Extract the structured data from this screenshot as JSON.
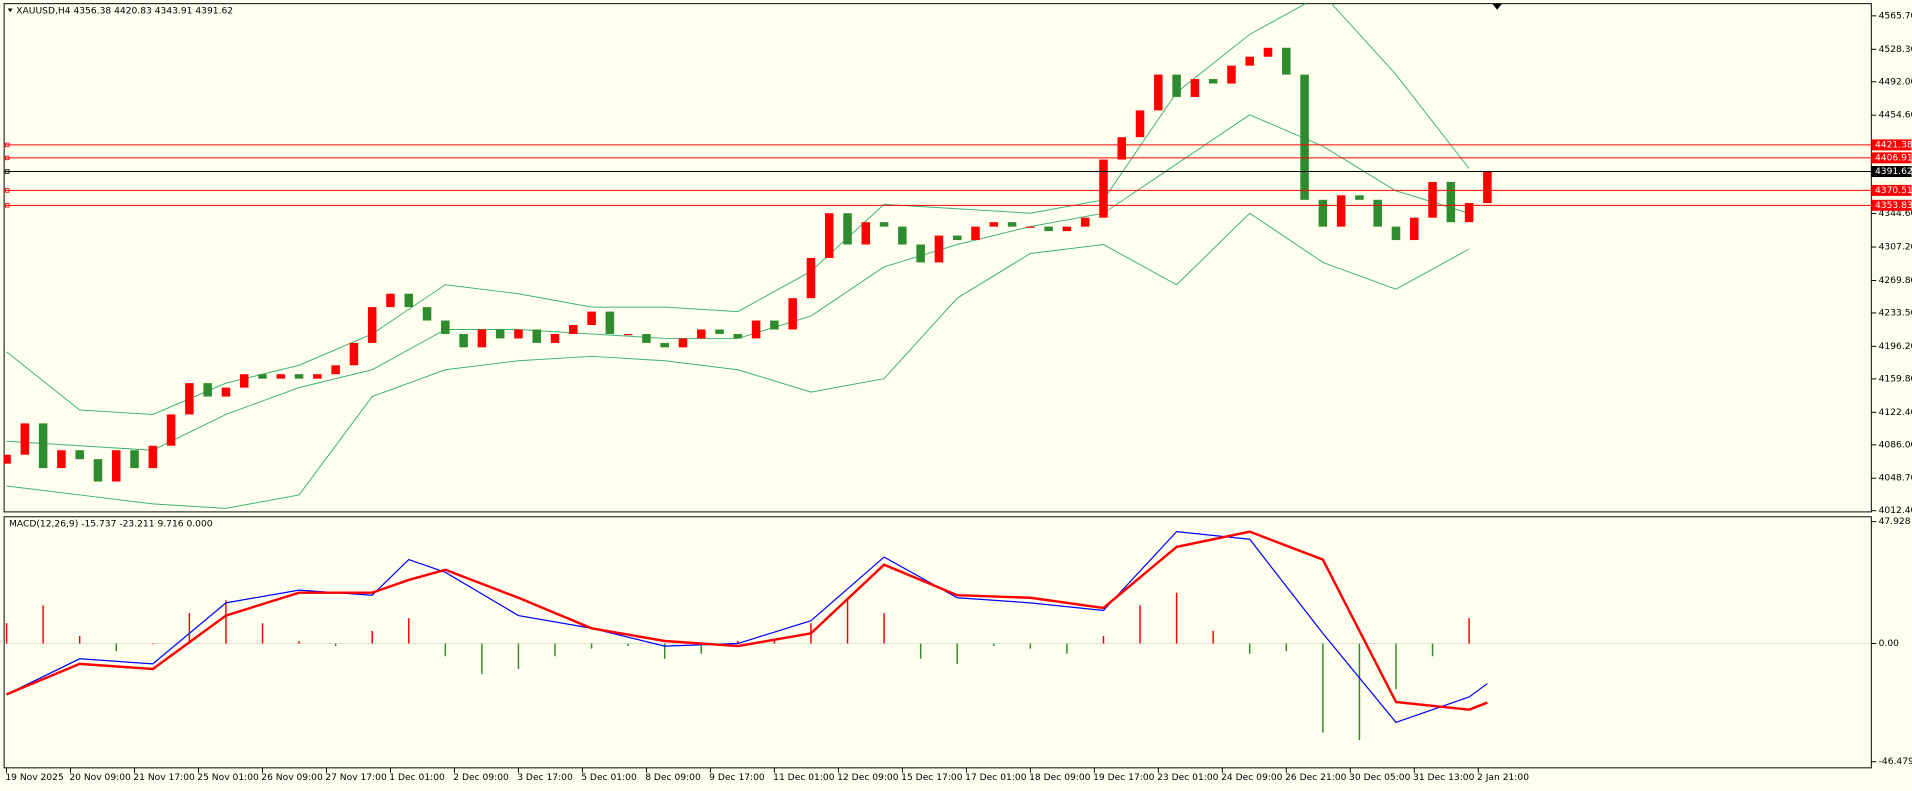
{
  "chart_data": {
    "type": "candlestick",
    "title": "XAUUSD,H4  4356.38 4420.83 4343.91 4391.62",
    "x_labels": [
      "19 Nov 2025",
      "20 Nov 09:00",
      "21 Nov 17:00",
      "25 Nov 01:00",
      "26 Nov 09:00",
      "27 Nov 17:00",
      "1 Dec 01:00",
      "2 Dec 09:00",
      "3 Dec 17:00",
      "5 Dec 01:00",
      "8 Dec 09:00",
      "9 Dec 17:00",
      "11 Dec 01:00",
      "12 Dec 09:00",
      "15 Dec 17:00",
      "17 Dec 01:00",
      "18 Dec 09:00",
      "19 Dec 17:00",
      "23 Dec 01:00",
      "24 Dec 09:00",
      "26 Dec 21:00",
      "30 Dec 05:00",
      "31 Dec 13:00",
      "2 Jan 21:00"
    ],
    "open": [
      4065,
      4075,
      4110,
      4060,
      4080,
      4070,
      4045,
      4080,
      4060,
      4085,
      4120,
      4155,
      4140,
      4150,
      4165,
      4160,
      4165,
      4160,
      4165,
      4175,
      4200,
      4240,
      4255,
      4240,
      4225,
      4210,
      4195,
      4215,
      4205,
      4215,
      4200,
      4210,
      4220,
      4235,
      4210,
      4210,
      4200,
      4195,
      4205,
      4215,
      4210,
      4205,
      4225,
      4215,
      4250,
      4295,
      4345,
      4310,
      4335,
      4330,
      4310,
      4290,
      4320,
      4315,
      4330,
      4335,
      4330,
      4330,
      4325,
      4330,
      4340,
      4405,
      4430,
      4460,
      4500,
      4475,
      4495,
      4490,
      4510,
      4520,
      4530,
      4500,
      4360,
      4330,
      4365,
      4360,
      4330,
      4315,
      4340,
      4380,
      4335,
      4356.38
    ],
    "close": [
      4075,
      4110,
      4060,
      4080,
      4070,
      4045,
      4080,
      4060,
      4085,
      4120,
      4155,
      4140,
      4150,
      4165,
      4160,
      4165,
      4160,
      4165,
      4175,
      4200,
      4240,
      4255,
      4240,
      4225,
      4210,
      4195,
      4215,
      4205,
      4215,
      4200,
      4210,
      4220,
      4235,
      4210,
      4210,
      4200,
      4195,
      4205,
      4215,
      4210,
      4205,
      4225,
      4215,
      4250,
      4295,
      4345,
      4310,
      4335,
      4330,
      4310,
      4290,
      4320,
      4315,
      4330,
      4335,
      4330,
      4330,
      4325,
      4330,
      4340,
      4405,
      4430,
      4460,
      4500,
      4475,
      4495,
      4490,
      4510,
      4520,
      4530,
      4500,
      4360,
      4330,
      4365,
      4360,
      4330,
      4315,
      4340,
      4380,
      4335,
      4356.38,
      4391.62
    ],
    "up_color": "#ff0000",
    "down_color": "#2e8b2e",
    "ylim": [
      4012.4,
      4565.7
    ],
    "yticks": [
      {
        "value": 4565.7,
        "label": "4565.70"
      },
      {
        "value": 4528.3,
        "label": "4528.30"
      },
      {
        "value": 4492.0,
        "label": "4492.00"
      },
      {
        "value": 4454.6,
        "label": "4454.60"
      },
      {
        "value": 4344.6,
        "label": "4344.60"
      },
      {
        "value": 4307.2,
        "label": "4307.20"
      },
      {
        "value": 4269.8,
        "label": "4269.80"
      },
      {
        "value": 4233.5,
        "label": "4233.50"
      },
      {
        "value": 4196.2,
        "label": "4196.20"
      },
      {
        "value": 4159.8,
        "label": "4159.80"
      },
      {
        "value": 4122.4,
        "label": "4122.40"
      },
      {
        "value": 4086.0,
        "label": "4086.00"
      },
      {
        "value": 4048.7,
        "label": "4048.70"
      },
      {
        "value": 4012.4,
        "label": "4012.40"
      }
    ],
    "levels": [
      4421.38,
      4406.91,
      4391.62,
      4370.51,
      4353.83
    ],
    "level_colors": [
      "#ff0000",
      "#ff0000",
      "#000000",
      "#ff0000",
      "#ff0000"
    ],
    "bands": {
      "x": [
        0,
        4,
        8,
        12,
        16,
        20,
        24,
        28,
        32,
        36,
        40,
        44,
        48,
        52,
        56,
        60,
        64,
        68,
        72,
        76,
        80
      ],
      "series": [
        {
          "color": "#3cb371",
          "values": [
            4190,
            4125,
            4120,
            4155,
            4175,
            4210,
            4265,
            4255,
            4240,
            4240,
            4235,
            4280,
            4355,
            4350,
            4345,
            4360,
            4480,
            4545,
            4590,
            4500,
            4395
          ]
        },
        {
          "color": "#3cb371",
          "values": [
            4090,
            4085,
            4080,
            4120,
            4150,
            4170,
            4215,
            4215,
            4210,
            4205,
            4205,
            4230,
            4285,
            4310,
            4330,
            4345,
            4400,
            4455,
            4420,
            4370,
            4345
          ]
        },
        {
          "color": "#3cb371",
          "values": [
            4040,
            4030,
            4020,
            4015,
            4030,
            4140,
            4170,
            4180,
            4185,
            4180,
            4170,
            4145,
            4160,
            4250,
            4300,
            4310,
            4265,
            4345,
            4290,
            4260,
            4305
          ]
        }
      ]
    },
    "macd": {
      "type": "macd",
      "title": "MACD(12,26,9) -15.737 -23.211 9.716 0.000",
      "ylim": [
        -46.479,
        47.928
      ],
      "yticks": [
        47.928,
        {
          "value": 0,
          "label": "0.00"
        },
        -46.479
      ],
      "x": [
        0,
        4,
        8,
        12,
        16,
        20,
        22,
        24,
        28,
        32,
        36,
        40,
        44,
        48,
        52,
        56,
        60,
        64,
        68,
        72,
        76,
        80,
        81
      ],
      "series": [
        {
          "color": "#0000ff",
          "values": [
            -20,
            -6,
            -8,
            16,
            21,
            19,
            33,
            28,
            11,
            6,
            -1,
            0,
            9,
            34,
            18,
            16,
            13,
            44,
            41,
            4,
            -31,
            -21,
            -15.737
          ]
        },
        {
          "color": "#ff0000",
          "values": [
            -20,
            -8,
            -10,
            11,
            20,
            20,
            25,
            29,
            18,
            6,
            1,
            -1,
            4,
            31,
            19,
            18,
            14,
            38,
            44,
            33,
            -23,
            -26,
            -23.211
          ]
        }
      ],
      "hist_x": [
        0,
        2,
        4,
        6,
        8,
        10,
        12,
        14,
        16,
        18,
        20,
        22,
        24,
        26,
        28,
        30,
        32,
        34,
        36,
        38,
        40,
        42,
        44,
        46,
        48,
        50,
        52,
        54,
        56,
        58,
        60,
        62,
        64,
        66,
        68,
        70,
        72,
        74,
        76,
        78,
        80
      ],
      "hist": [
        8,
        15,
        3,
        -3,
        0,
        12,
        17,
        8,
        1,
        -1,
        5,
        10,
        -5,
        -12,
        -10,
        -5,
        -2,
        -1,
        -6,
        -4,
        1,
        2,
        8,
        18,
        12,
        -6,
        -8,
        -1,
        -2,
        -4,
        3,
        15,
        20,
        5,
        -4,
        -3,
        -35,
        -38,
        -18,
        -5,
        10
      ],
      "hist_up_color": "#ff0000",
      "hist_down_color": "#2e8b2e"
    }
  }
}
